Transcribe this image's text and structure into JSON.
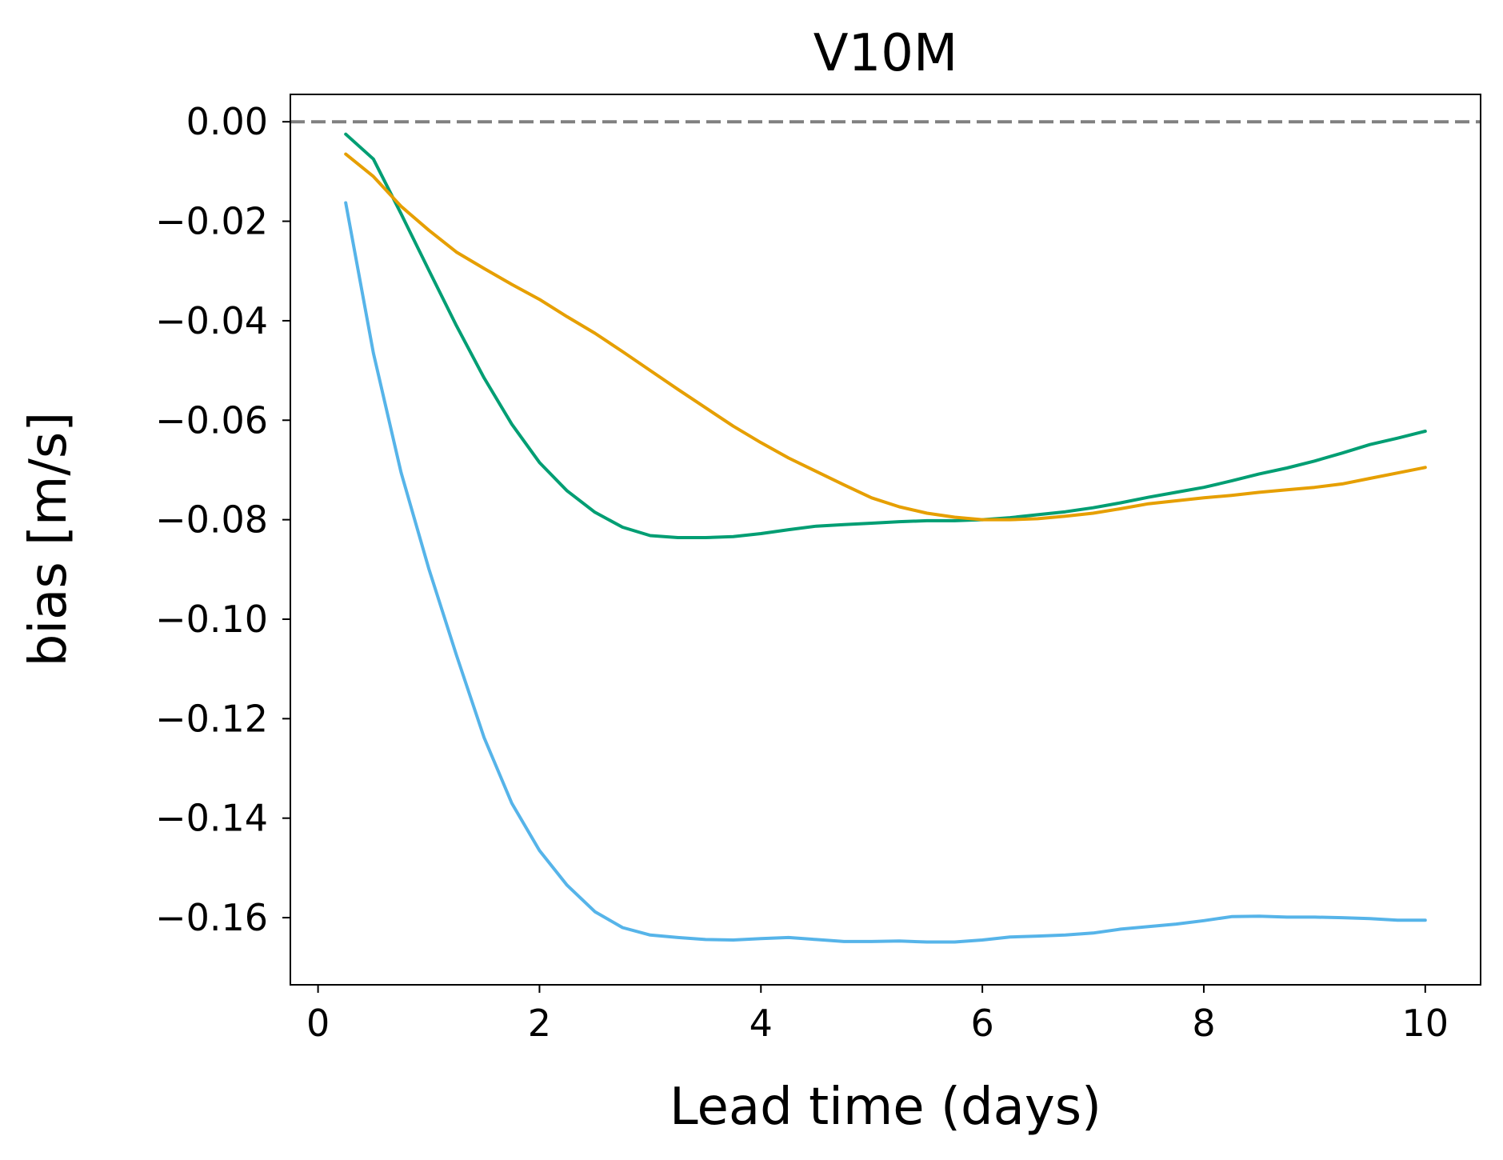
{
  "chart_data": {
    "type": "line",
    "title": "V10M",
    "xlabel": "Lead time (days)",
    "ylabel": "bias [m/s]",
    "xlim": [
      -0.25,
      10.5
    ],
    "ylim": [
      -0.1735,
      0.0055
    ],
    "xticks": [
      0,
      2,
      4,
      6,
      8,
      10
    ],
    "xtick_labels": [
      "0",
      "2",
      "4",
      "6",
      "8",
      "10"
    ],
    "yticks": [
      0.0,
      -0.02,
      -0.04,
      -0.06,
      -0.08,
      -0.1,
      -0.12,
      -0.14,
      -0.16
    ],
    "ytick_labels": [
      "0.00",
      "−0.02",
      "−0.04",
      "−0.06",
      "−0.08",
      "−0.10",
      "−0.12",
      "−0.14",
      "−0.16"
    ],
    "grid": false,
    "reference_line": {
      "y": 0.0,
      "style": "dashed",
      "color": "#808080"
    },
    "x": [
      0.25,
      0.5,
      0.75,
      1.0,
      1.25,
      1.5,
      1.75,
      2.0,
      2.25,
      2.5,
      2.75,
      3.0,
      3.25,
      3.5,
      3.75,
      4.0,
      4.25,
      4.5,
      4.75,
      5.0,
      5.25,
      5.5,
      5.75,
      6.0,
      6.25,
      6.5,
      6.75,
      7.0,
      7.25,
      7.5,
      7.75,
      8.0,
      8.25,
      8.5,
      8.75,
      9.0,
      9.25,
      9.5,
      9.75,
      10.0
    ],
    "series": [
      {
        "color": "#56B4E9",
        "values": [
          -0.0163,
          -0.0465,
          -0.0705,
          -0.0898,
          -0.1072,
          -0.1238,
          -0.137,
          -0.1465,
          -0.1535,
          -0.1588,
          -0.162,
          -0.1635,
          -0.164,
          -0.1644,
          -0.1645,
          -0.1642,
          -0.164,
          -0.1644,
          -0.1648,
          -0.1648,
          -0.1647,
          -0.1649,
          -0.1649,
          -0.1645,
          -0.1639,
          -0.1637,
          -0.1635,
          -0.1631,
          -0.1623,
          -0.1618,
          -0.1613,
          -0.1606,
          -0.1598,
          -0.1597,
          -0.1599,
          -0.1599,
          -0.16,
          -0.1602,
          -0.1605,
          -0.1605
        ]
      },
      {
        "color": "#009E73",
        "values": [
          -0.0025,
          -0.0075,
          -0.0185,
          -0.0298,
          -0.041,
          -0.0515,
          -0.0608,
          -0.0685,
          -0.0742,
          -0.0785,
          -0.0815,
          -0.0832,
          -0.0836,
          -0.0836,
          -0.0834,
          -0.0828,
          -0.082,
          -0.0813,
          -0.081,
          -0.0807,
          -0.0804,
          -0.0802,
          -0.0802,
          -0.08,
          -0.0796,
          -0.079,
          -0.0784,
          -0.0776,
          -0.0766,
          -0.0755,
          -0.0745,
          -0.0735,
          -0.0722,
          -0.0708,
          -0.0696,
          -0.0682,
          -0.0666,
          -0.0649,
          -0.0636,
          -0.0622
        ]
      },
      {
        "color": "#E69F00",
        "values": [
          -0.0065,
          -0.011,
          -0.017,
          -0.0218,
          -0.0262,
          -0.0295,
          -0.0327,
          -0.0357,
          -0.0392,
          -0.0425,
          -0.0462,
          -0.05,
          -0.0538,
          -0.0575,
          -0.0612,
          -0.0645,
          -0.0676,
          -0.0703,
          -0.073,
          -0.0756,
          -0.0774,
          -0.0787,
          -0.0795,
          -0.08,
          -0.08,
          -0.0798,
          -0.0793,
          -0.0787,
          -0.0778,
          -0.0768,
          -0.0762,
          -0.0756,
          -0.0751,
          -0.0745,
          -0.074,
          -0.0735,
          -0.0728,
          -0.0717,
          -0.0706,
          -0.0695
        ]
      }
    ]
  }
}
